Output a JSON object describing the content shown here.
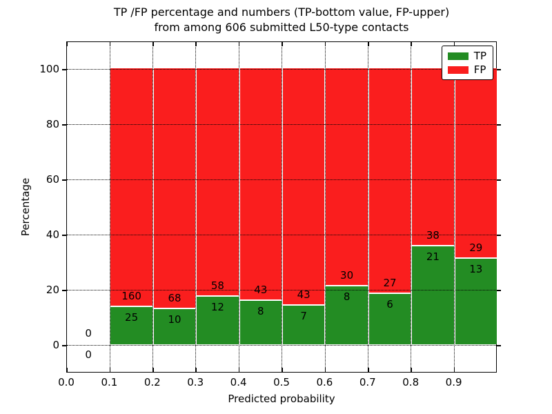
{
  "chart_data": {
    "type": "bar",
    "stacked": true,
    "title": "TP /FP percentage and numbers (TP-bottom value, FP-upper) from among 606 submitted L50-type contacts",
    "title_line1": "TP /FP percentage and numbers (TP-bottom value, FP-upper)",
    "title_line2": "from among 606 submitted L50-type contacts",
    "xlabel": "Predicted probability",
    "ylabel": "Percentage",
    "xlim": [
      0,
      1.0
    ],
    "ylim": [
      -10,
      110
    ],
    "grid": "dotted",
    "legend_position": "upper right",
    "x_tick_labels": [
      "0.0",
      "0.1",
      "0.2",
      "0.3",
      "0.4",
      "0.5",
      "0.6",
      "0.7",
      "0.8",
      "0.9"
    ],
    "y_tick_labels": [
      "0",
      "20",
      "40",
      "60",
      "80",
      "100"
    ],
    "series": [
      {
        "name": "TP",
        "color": "#238c23"
      },
      {
        "name": "FP",
        "color": "#fa1e1e"
      }
    ],
    "bins": [
      {
        "range": [
          0.0,
          0.1
        ],
        "tp": 0,
        "fp": 0
      },
      {
        "range": [
          0.1,
          0.2
        ],
        "tp": 25,
        "fp": 160
      },
      {
        "range": [
          0.2,
          0.3
        ],
        "tp": 10,
        "fp": 68
      },
      {
        "range": [
          0.3,
          0.4
        ],
        "tp": 12,
        "fp": 58
      },
      {
        "range": [
          0.4,
          0.5
        ],
        "tp": 8,
        "fp": 43
      },
      {
        "range": [
          0.5,
          0.6
        ],
        "tp": 7,
        "fp": 43
      },
      {
        "range": [
          0.6,
          0.7
        ],
        "tp": 8,
        "fp": 30
      },
      {
        "range": [
          0.7,
          0.8
        ],
        "tp": 6,
        "fp": 27
      },
      {
        "range": [
          0.8,
          0.9
        ],
        "tp": 21,
        "fp": 38
      },
      {
        "range": [
          0.9,
          1.0
        ],
        "tp": 13,
        "fp": 29
      }
    ]
  }
}
